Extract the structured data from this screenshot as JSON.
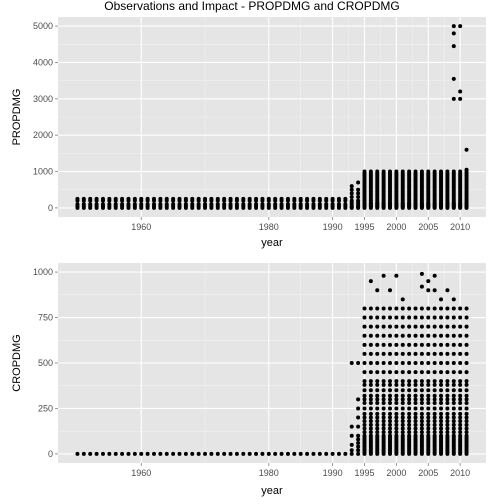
{
  "title": "Observations and Impact - PROPDMG and CROPDMG",
  "colors": {
    "panel_bg": "#e5e5e5",
    "grid_major": "#ffffff",
    "grid_minor": "#f2f2f2",
    "point": "#000000",
    "tick_text": "#4d4d4d"
  },
  "chart_data": [
    {
      "type": "scatter",
      "xlabel": "year",
      "ylabel": "PROPDMG",
      "xlim": [
        1950,
        2011
      ],
      "ylim": [
        0,
        5000
      ],
      "x_ticks": [
        1960,
        1980,
        1990,
        1995,
        2000,
        2005,
        2010
      ],
      "y_ticks": [
        0,
        1000,
        2000,
        3000,
        4000,
        5000
      ],
      "grid": true,
      "series": [
        {
          "description": "per-year observations",
          "points_by_year": [
            {
              "years": [
                1950,
                1992
              ],
              "values": [
                0,
                50,
                100,
                200,
                250
              ]
            },
            {
              "years": [
                1993,
                1993
              ],
              "values": [
                0,
                20,
                50,
                100,
                150,
                200,
                300,
                400,
                500,
                600
              ]
            },
            {
              "years": [
                1994,
                1994
              ],
              "values": [
                0,
                20,
                50,
                100,
                150,
                200,
                300,
                400,
                500,
                700
              ]
            },
            {
              "years": [
                1995,
                2011
              ],
              "values": [
                0,
                25,
                50,
                75,
                100,
                125,
                150,
                200,
                250,
                300,
                350,
                400,
                450,
                500,
                550,
                600,
                650,
                700,
                750,
                800,
                850,
                900,
                950,
                1000
              ]
            }
          ],
          "extra_points": [
            {
              "x": 2009,
              "y": 5000
            },
            {
              "x": 2009,
              "y": 4800
            },
            {
              "x": 2009,
              "y": 4450
            },
            {
              "x": 2009,
              "y": 3550
            },
            {
              "x": 2009,
              "y": 3000
            },
            {
              "x": 2010,
              "y": 5000
            },
            {
              "x": 2010,
              "y": 3200
            },
            {
              "x": 2010,
              "y": 3000
            },
            {
              "x": 2011,
              "y": 1600
            },
            {
              "x": 2011,
              "y": 1050
            }
          ]
        }
      ]
    },
    {
      "type": "scatter",
      "xlabel": "year",
      "ylabel": "CROPDMG",
      "xlim": [
        1950,
        2011
      ],
      "ylim": [
        0,
        1000
      ],
      "x_ticks": [
        1960,
        1980,
        1990,
        1995,
        2000,
        2005,
        2010
      ],
      "y_ticks": [
        0,
        250,
        500,
        750,
        1000
      ],
      "grid": true,
      "series": [
        {
          "description": "per-year observations",
          "points_by_year": [
            {
              "years": [
                1950,
                1992
              ],
              "values": [
                0
              ]
            },
            {
              "years": [
                1993,
                1993
              ],
              "values": [
                0,
                20,
                50,
                100,
                150,
                500
              ]
            },
            {
              "years": [
                1994,
                1994
              ],
              "values": [
                0,
                20,
                40,
                60,
                80,
                100,
                150,
                200,
                250,
                300,
                500
              ]
            },
            {
              "years": [
                1995,
                2011
              ],
              "values": [
                0,
                10,
                20,
                30,
                40,
                50,
                60,
                70,
                80,
                90,
                100,
                120,
                140,
                160,
                180,
                200,
                220,
                250,
                280,
                300,
                320,
                350,
                380,
                400,
                450,
                500,
                550,
                600,
                650,
                700,
                750,
                800
              ]
            }
          ],
          "extra_points": [
            {
              "x": 1996,
              "y": 950
            },
            {
              "x": 1997,
              "y": 900
            },
            {
              "x": 1998,
              "y": 980
            },
            {
              "x": 1999,
              "y": 900
            },
            {
              "x": 2000,
              "y": 980
            },
            {
              "x": 2001,
              "y": 850
            },
            {
              "x": 2004,
              "y": 990
            },
            {
              "x": 2004,
              "y": 920
            },
            {
              "x": 2005,
              "y": 950
            },
            {
              "x": 2005,
              "y": 900
            },
            {
              "x": 2006,
              "y": 980
            },
            {
              "x": 2006,
              "y": 900
            },
            {
              "x": 2007,
              "y": 850
            },
            {
              "x": 2008,
              "y": 900
            },
            {
              "x": 2009,
              "y": 850
            }
          ]
        }
      ]
    }
  ]
}
